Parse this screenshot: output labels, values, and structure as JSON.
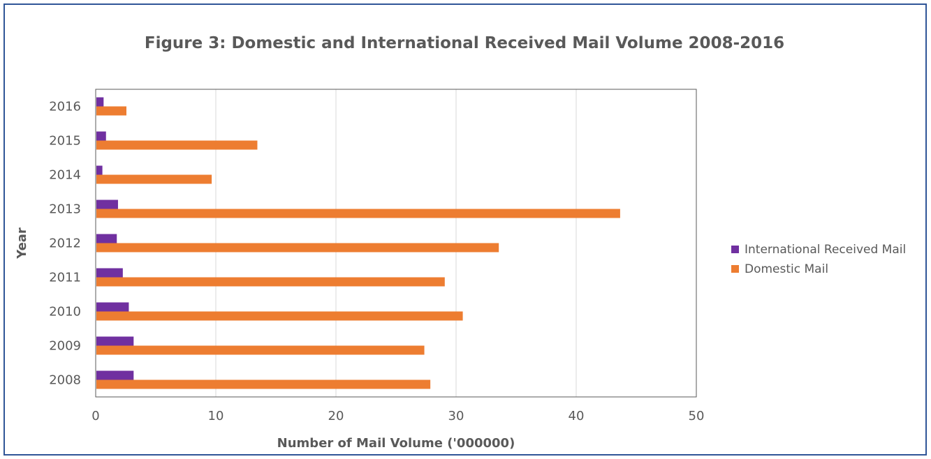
{
  "chart_data": {
    "type": "bar",
    "orientation": "horizontal",
    "title": "Figure 3: Domestic and International Received Mail Volume 2008-2016",
    "xlabel": "Number of Mail Volume ('000000)",
    "ylabel": "Year",
    "xlim": [
      0,
      50
    ],
    "x_ticks": [
      0,
      10,
      20,
      30,
      40,
      50
    ],
    "grid": true,
    "legend_position": "right",
    "categories": [
      "2008",
      "2009",
      "2010",
      "2011",
      "2012",
      "2013",
      "2014",
      "2015",
      "2016"
    ],
    "series": [
      {
        "name": "International Received Mail",
        "color": "#7030A0",
        "values": [
          3.1,
          3.1,
          2.7,
          2.2,
          1.7,
          1.8,
          0.5,
          0.8,
          0.6
        ]
      },
      {
        "name": "Domestic Mail",
        "color": "#ED7D31",
        "values": [
          27.8,
          27.3,
          30.5,
          29.0,
          33.5,
          43.6,
          9.6,
          13.4,
          2.5
        ]
      }
    ]
  }
}
